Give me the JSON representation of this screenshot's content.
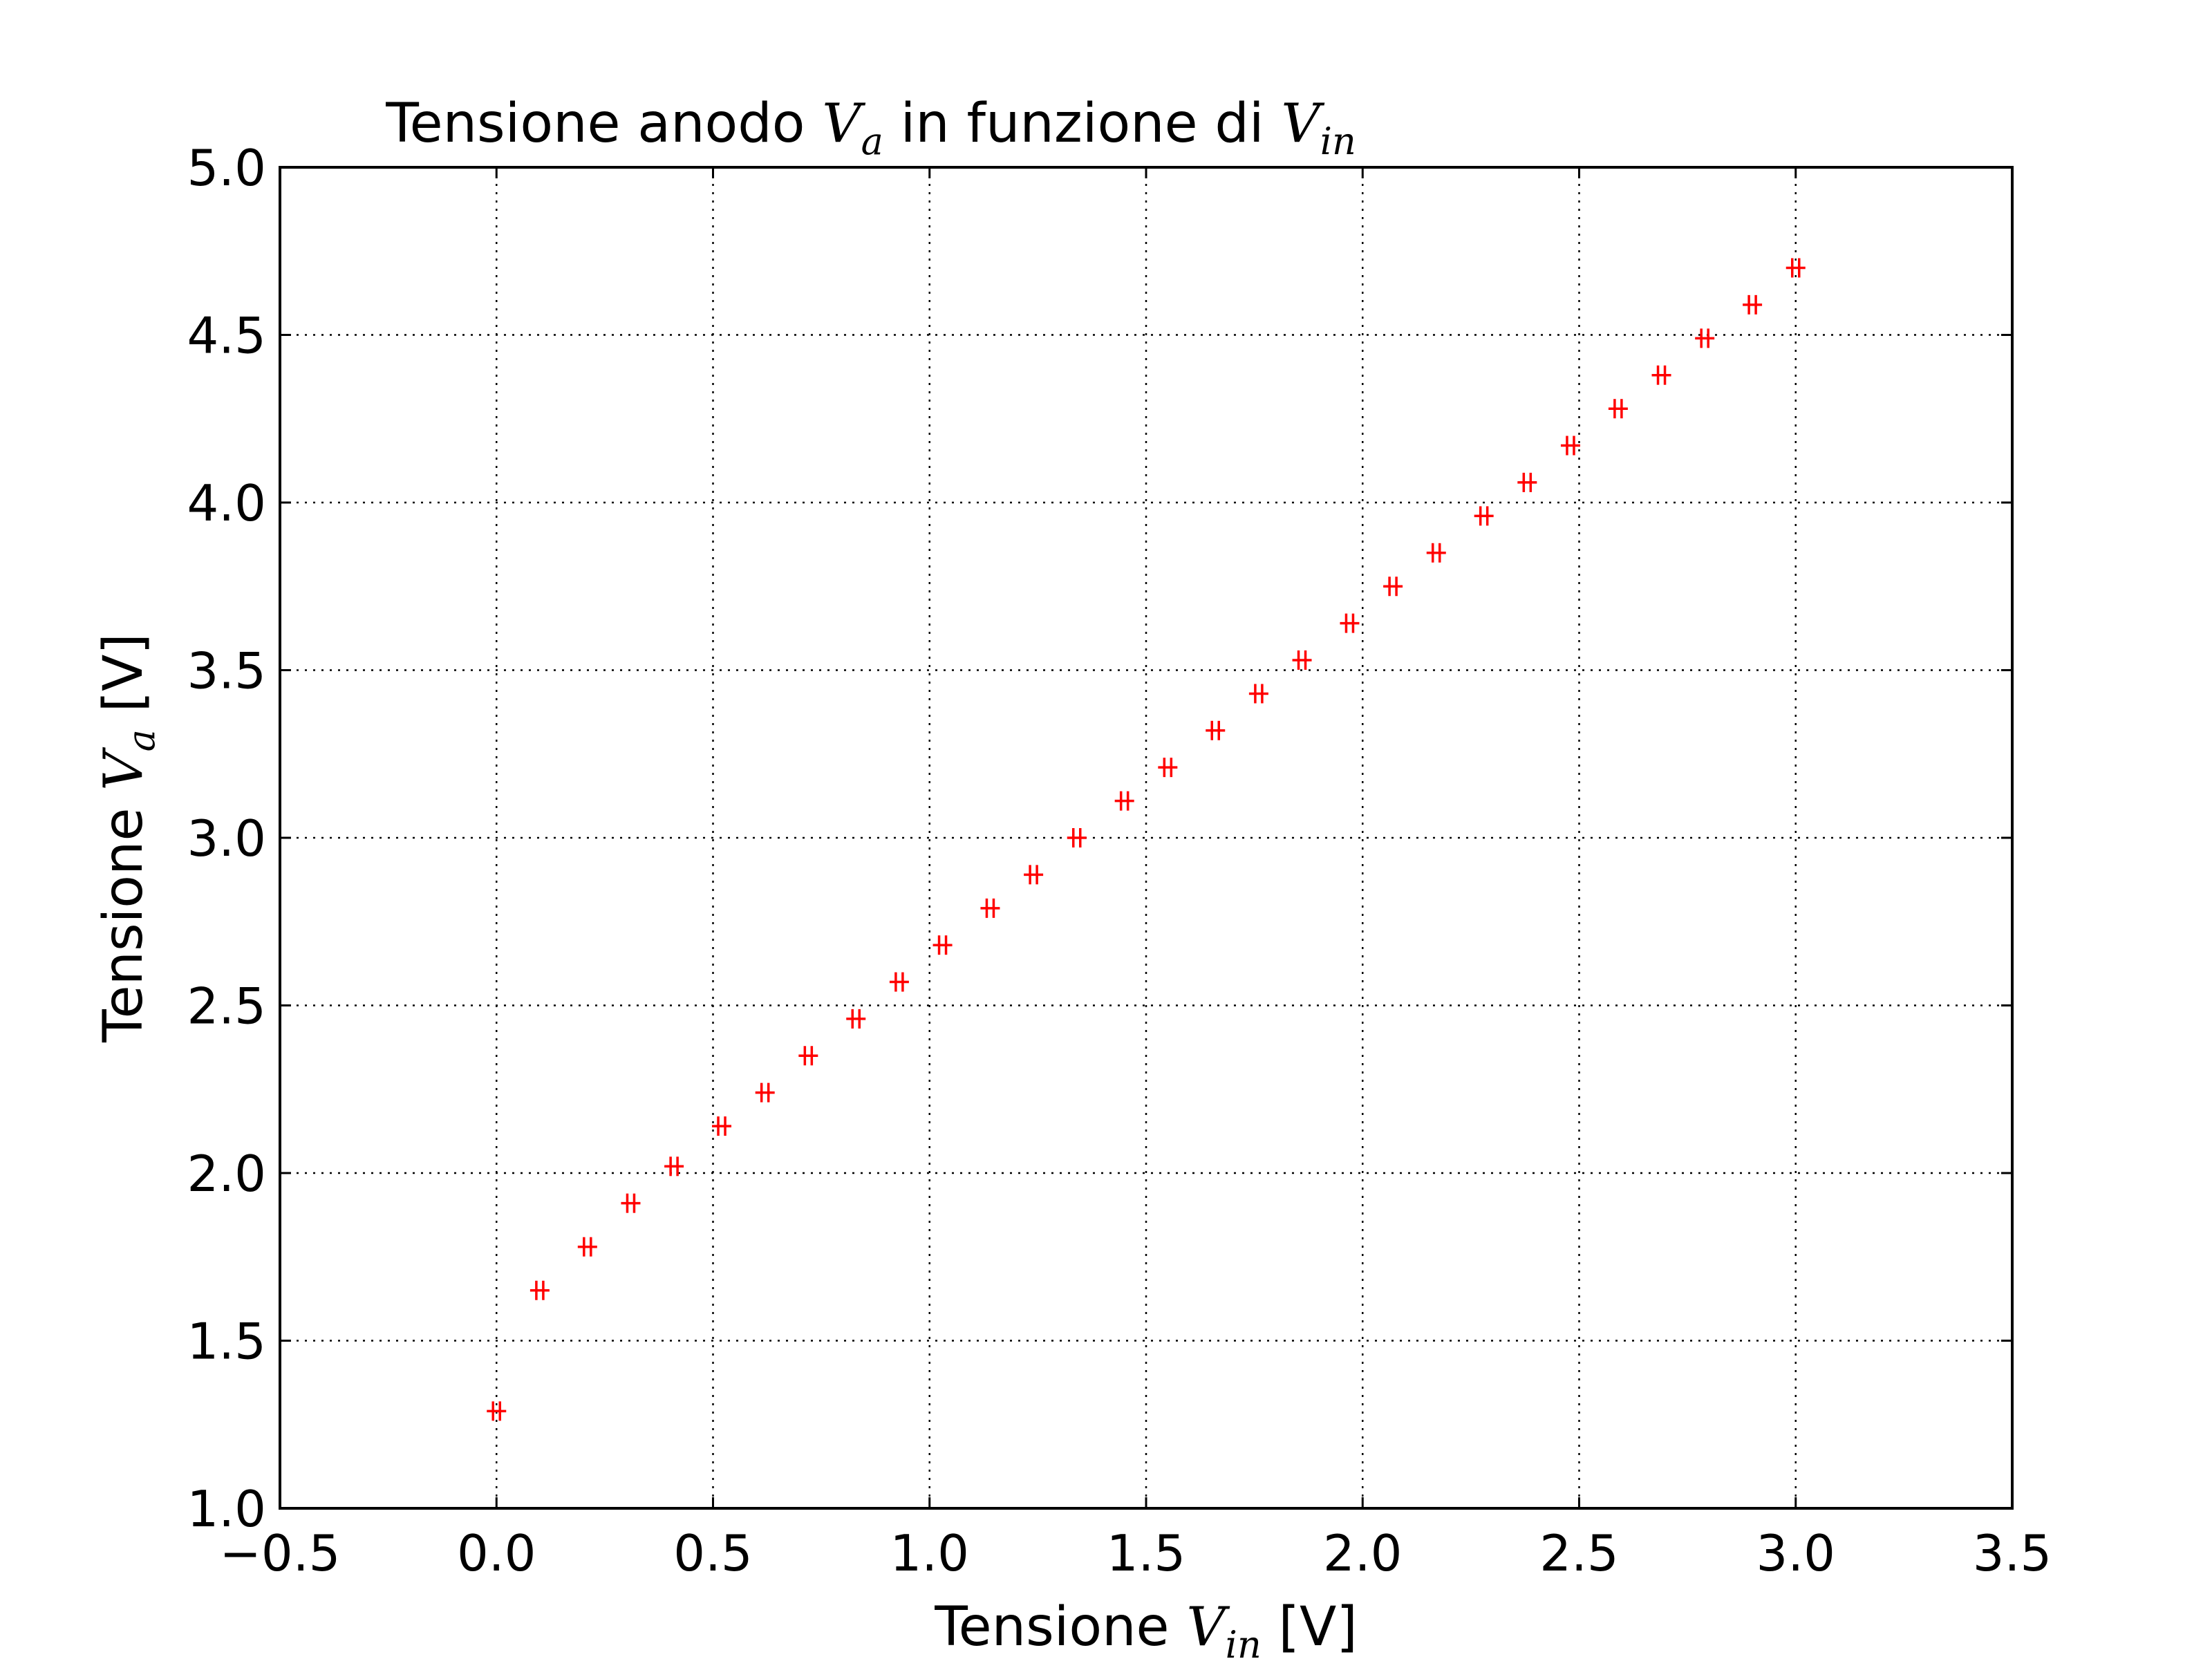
{
  "chart_data": {
    "type": "scatter",
    "title": {
      "text": "Tensione anodo ",
      "sym1": "V",
      "sub1": "a",
      "mid": " in funzione di ",
      "sym2": "V",
      "sub2": "in"
    },
    "xlabel": {
      "text": "Tensione ",
      "sym": "V",
      "sub": "in",
      "unit": " [V]"
    },
    "ylabel": {
      "text": "Tensione ",
      "sym": "V",
      "sub": "a",
      "unit": " [V]"
    },
    "xlim": [
      -0.5,
      3.5
    ],
    "ylim": [
      1.0,
      5.0
    ],
    "xticks": [
      -0.5,
      0.0,
      0.5,
      1.0,
      1.5,
      2.0,
      2.5,
      3.0,
      3.5
    ],
    "yticks": [
      1.0,
      1.5,
      2.0,
      2.5,
      3.0,
      3.5,
      4.0,
      4.5,
      5.0
    ],
    "xtick_labels": [
      "−0.5",
      "0.0",
      "0.5",
      "1.0",
      "1.5",
      "2.0",
      "2.5",
      "3.0",
      "3.5"
    ],
    "ytick_labels": [
      "1.0",
      "1.5",
      "2.0",
      "2.5",
      "3.0",
      "3.5",
      "4.0",
      "4.5",
      "5.0"
    ],
    "grid": true,
    "marker": "+",
    "marker_color": "#ff0000",
    "series": [
      {
        "x": [
          0.0,
          0.1,
          0.21,
          0.31,
          0.41,
          0.52,
          0.62,
          0.72,
          0.83,
          0.93,
          1.03,
          1.14,
          1.24,
          1.34,
          1.45,
          1.55,
          1.66,
          1.76,
          1.86,
          1.97,
          2.07,
          2.17,
          2.28,
          2.38,
          2.48,
          2.59,
          2.69,
          2.79,
          2.9,
          3.0
        ],
        "y": [
          1.29,
          1.65,
          1.78,
          1.91,
          2.02,
          2.14,
          2.24,
          2.35,
          2.46,
          2.57,
          2.68,
          2.79,
          2.89,
          3.0,
          3.11,
          3.21,
          3.32,
          3.43,
          3.53,
          3.64,
          3.75,
          3.85,
          3.96,
          4.06,
          4.17,
          4.28,
          4.38,
          4.49,
          4.59,
          4.7
        ]
      }
    ]
  }
}
